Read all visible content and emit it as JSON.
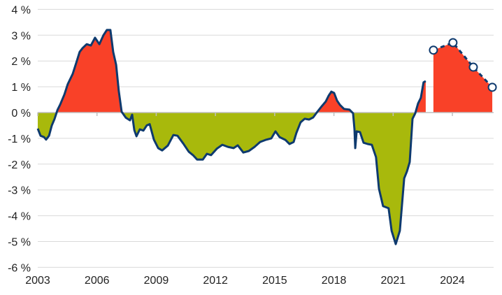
{
  "chart_data": {
    "type": "area",
    "title": "",
    "xlabel": "",
    "ylabel": "",
    "xlim": [
      2003,
      2026.1
    ],
    "ylim": [
      -6,
      4
    ],
    "y_ticks": [
      4,
      3,
      2,
      1,
      0,
      -1,
      -2,
      -3,
      -4,
      -5,
      -6
    ],
    "y_tick_labels": [
      "4 %",
      "3 %",
      "2 %",
      "1 %",
      "0 %",
      "-1 %",
      "-2 %",
      "-3 %",
      "-4 %",
      "-5 %",
      "-6 %"
    ],
    "x_ticks": [
      2003,
      2006,
      2009,
      2012,
      2015,
      2018,
      2021,
      2024
    ],
    "x_tick_labels": [
      "2003",
      "2006",
      "2009",
      "2012",
      "2015",
      "2018",
      "2021",
      "2024"
    ],
    "grid": true,
    "legend": "none",
    "colors": {
      "line": "#0E3A6E",
      "positive_fill": "#F94128",
      "negative_fill": "#A8B90C",
      "grid": "#D9D9D9",
      "zero_axis": "#BFBFBF"
    },
    "series": [
      {
        "kind": "actual",
        "x": [
          2003.0,
          2003.14,
          2003.32,
          2003.42,
          2003.57,
          2003.71,
          2003.85,
          2004.0,
          2004.13,
          2004.35,
          2004.52,
          2004.77,
          2004.98,
          2005.12,
          2005.27,
          2005.48,
          2005.69,
          2005.9,
          2006.12,
          2006.33,
          2006.5,
          2006.68,
          2006.82,
          2006.97,
          2007.1,
          2007.25,
          2007.46,
          2007.67,
          2007.78,
          2007.89,
          2008.0,
          2008.17,
          2008.35,
          2008.52,
          2008.67,
          2008.88,
          2009.1,
          2009.3,
          2009.59,
          2009.87,
          2010.08,
          2010.37,
          2010.65,
          2010.86,
          2011.07,
          2011.36,
          2011.57,
          2011.78,
          2012.07,
          2012.35,
          2012.63,
          2012.92,
          2013.13,
          2013.41,
          2013.69,
          2013.98,
          2014.26,
          2014.54,
          2014.83,
          2015.04,
          2015.25,
          2015.54,
          2015.75,
          2015.96,
          2016.1,
          2016.31,
          2016.52,
          2016.74,
          2016.95,
          2017.16,
          2017.38,
          2017.59,
          2017.73,
          2017.87,
          2018.01,
          2018.16,
          2018.3,
          2018.51,
          2018.79,
          2018.97,
          2019.04,
          2019.08,
          2019.15,
          2019.32,
          2019.5,
          2019.71,
          2019.92,
          2020.13,
          2020.28,
          2020.49,
          2020.77,
          2020.92,
          2021.13,
          2021.34,
          2021.56,
          2021.7,
          2021.84,
          2021.98,
          2022.12,
          2022.26,
          2022.4,
          2022.54,
          2022.65
        ],
        "y": [
          -0.62,
          -0.9,
          -0.95,
          -1.05,
          -0.9,
          -0.5,
          -0.25,
          0.1,
          0.3,
          0.7,
          1.1,
          1.5,
          2.0,
          2.35,
          2.5,
          2.65,
          2.6,
          2.9,
          2.65,
          3.0,
          3.2,
          3.2,
          2.35,
          1.85,
          0.85,
          0.03,
          -0.2,
          -0.3,
          -0.08,
          -0.68,
          -0.92,
          -0.65,
          -0.7,
          -0.5,
          -0.45,
          -1.05,
          -1.38,
          -1.47,
          -1.28,
          -0.87,
          -0.9,
          -1.2,
          -1.52,
          -1.65,
          -1.82,
          -1.82,
          -1.6,
          -1.65,
          -1.4,
          -1.25,
          -1.33,
          -1.38,
          -1.27,
          -1.55,
          -1.49,
          -1.33,
          -1.14,
          -1.06,
          -1.0,
          -0.73,
          -0.95,
          -1.06,
          -1.22,
          -1.14,
          -0.79,
          -0.38,
          -0.24,
          -0.27,
          -0.19,
          0.03,
          0.24,
          0.43,
          0.65,
          0.81,
          0.76,
          0.46,
          0.3,
          0.14,
          0.11,
          -0.03,
          -0.65,
          -1.38,
          -0.73,
          -0.76,
          -1.17,
          -1.22,
          -1.25,
          -1.73,
          -2.95,
          -3.63,
          -3.71,
          -4.58,
          -5.1,
          -4.58,
          -2.55,
          -2.28,
          -1.92,
          -0.24,
          -0.03,
          0.35,
          0.57,
          1.17,
          1.22
        ]
      },
      {
        "kind": "forecast",
        "line_style": "dashed",
        "markers": "hollow-circle",
        "x": [
          2023.04,
          2024.03,
          2025.06,
          2026.02
        ],
        "y": [
          2.42,
          2.71,
          1.76,
          0.98
        ]
      }
    ]
  }
}
